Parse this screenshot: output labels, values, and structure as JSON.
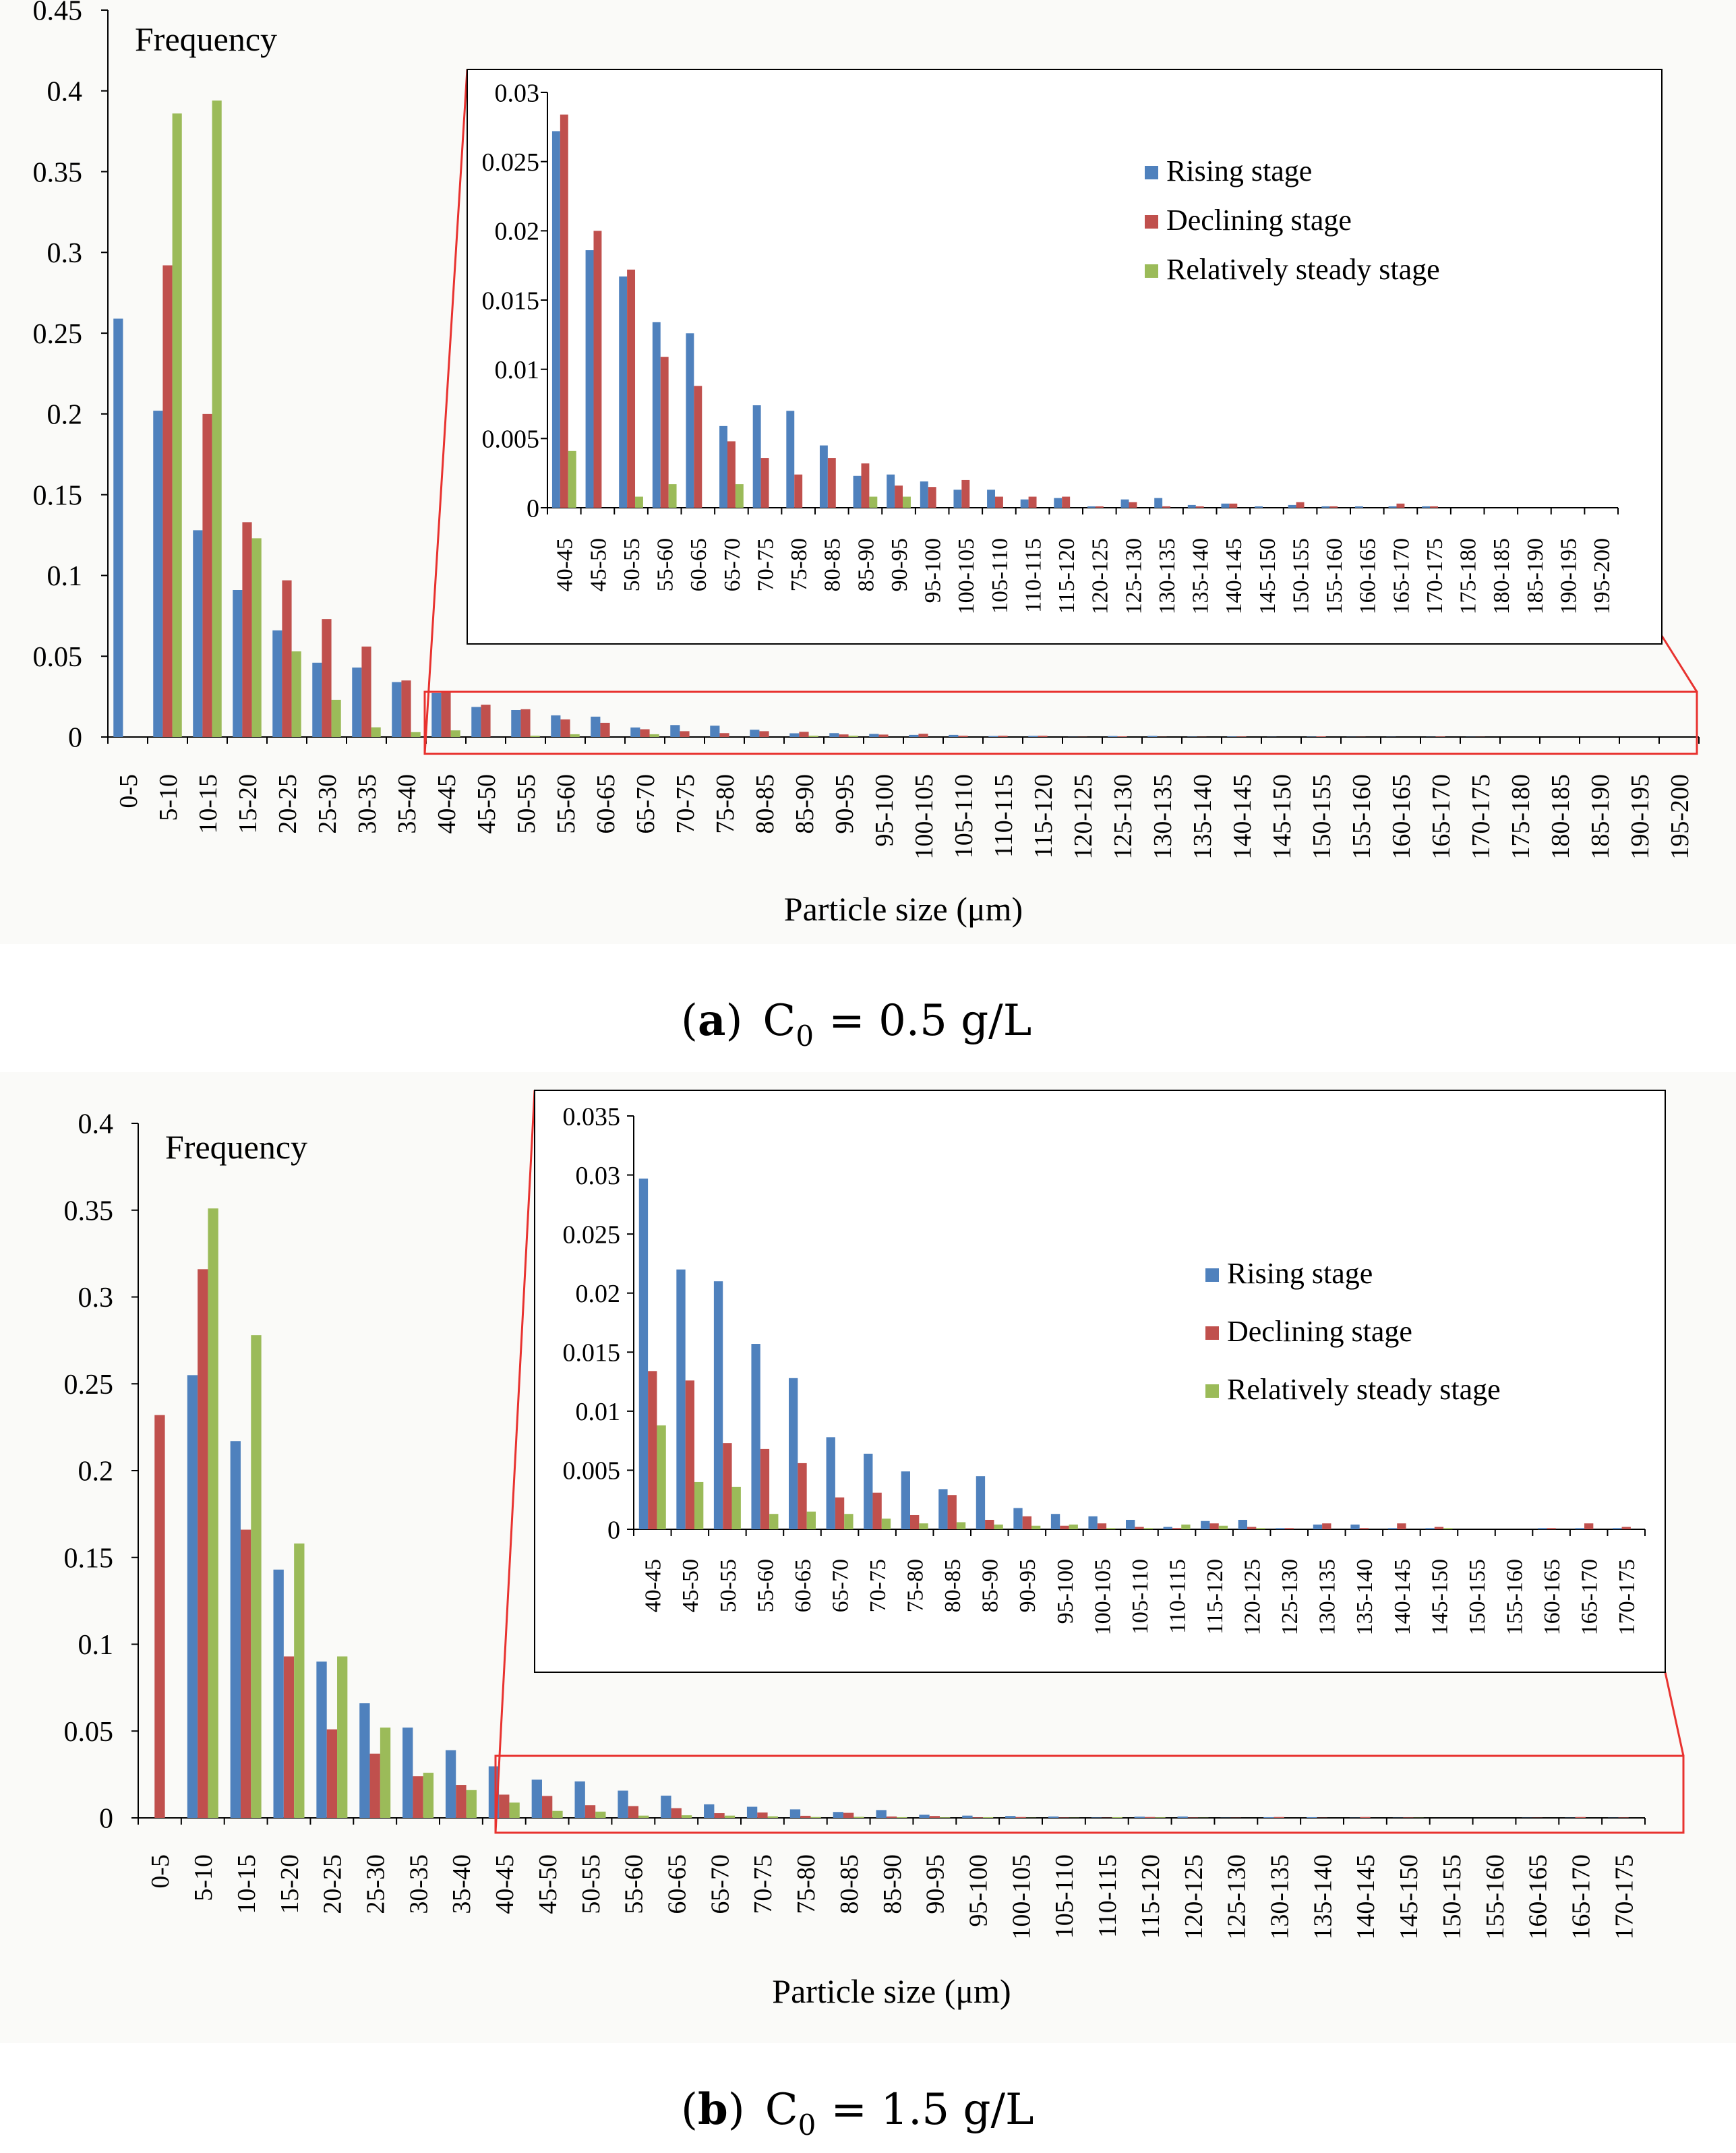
{
  "series_names": [
    "Rising stage",
    "Declining stage",
    "Relatively steady stage"
  ],
  "colors": {
    "rising": "#4f81bd",
    "declining": "#c0504d",
    "steady": "#9bbb59",
    "zoom_box": "#e8322f"
  },
  "chart_data": [
    {
      "type": "bar",
      "id": "a-main",
      "ylabel": "Frequency",
      "xlabel": "Particle size (μm)",
      "ylim": [
        0,
        0.45
      ],
      "yticks": [
        "0",
        "0.05",
        "0.1",
        "0.15",
        "0.2",
        "0.25",
        "0.3",
        "0.35",
        "0.4",
        "0.45"
      ],
      "categories": [
        "0-5",
        "5-10",
        "10-15",
        "15-20",
        "20-25",
        "25-30",
        "30-35",
        "35-40",
        "40-45",
        "45-50",
        "50-55",
        "55-60",
        "60-65",
        "65-70",
        "70-75",
        "75-80",
        "80-85",
        "85-90",
        "90-95",
        "95-100",
        "100-105",
        "105-110",
        "110-115",
        "115-120",
        "120-125",
        "125-130",
        "130-135",
        "135-140",
        "140-145",
        "145-150",
        "150-155",
        "155-160",
        "160-165",
        "165-170",
        "170-175",
        "175-180",
        "180-185",
        "185-190",
        "190-195",
        "195-200"
      ],
      "series": [
        {
          "name": "Rising stage",
          "values": [
            0.259,
            0.202,
            0.128,
            0.091,
            0.066,
            0.046,
            0.043,
            0.034,
            0.0272,
            0.0186,
            0.0167,
            0.0134,
            0.0126,
            0.0059,
            0.0074,
            0.007,
            0.0045,
            0.0023,
            0.0024,
            0.0019,
            0.0013,
            0.0013,
            0.0006,
            0.0007,
            0.0001,
            0.0006,
            0.0007,
            0.0002,
            0.0003,
            0.0001,
            0.0002,
            0.0001,
            0.0001,
            0.0001,
            0.0001,
            0,
            0,
            0,
            0,
            0
          ]
        },
        {
          "name": "Declining stage",
          "values": [
            0,
            0.292,
            0.2,
            0.133,
            0.097,
            0.073,
            0.056,
            0.035,
            0.0284,
            0.02,
            0.0172,
            0.0109,
            0.0088,
            0.0048,
            0.0036,
            0.0024,
            0.0036,
            0.0032,
            0.0016,
            0.0015,
            0.002,
            0.0008,
            0.0008,
            0.0008,
            0.0001,
            0.0004,
            0.0001,
            0.0001,
            0.0003,
            0,
            0.0004,
            0.0001,
            0,
            0.0003,
            0.0001,
            0,
            0,
            0,
            0,
            0
          ]
        },
        {
          "name": "Relatively steady stage",
          "values": [
            0,
            0.386,
            0.394,
            0.123,
            0.053,
            0.023,
            0.006,
            0.003,
            0.0041,
            0,
            0.0008,
            0.0017,
            0,
            0.0017,
            0,
            0,
            0,
            0.0008,
            0.0008,
            0,
            0,
            0,
            0,
            0,
            0,
            0,
            0,
            0,
            0,
            0,
            0,
            0,
            0,
            0,
            0,
            0,
            0,
            0,
            0,
            0
          ]
        }
      ]
    },
    {
      "type": "bar",
      "id": "a-inset",
      "ylim": [
        0,
        0.03
      ],
      "yticks": [
        "0",
        "0.005",
        "0.01",
        "0.015",
        "0.02",
        "0.025",
        "0.03"
      ],
      "categories": [
        "40-45",
        "45-50",
        "50-55",
        "55-60",
        "60-65",
        "65-70",
        "70-75",
        "75-80",
        "80-85",
        "85-90",
        "90-95",
        "95-100",
        "100-105",
        "105-110",
        "110-115",
        "115-120",
        "120-125",
        "125-130",
        "130-135",
        "135-140",
        "140-145",
        "145-150",
        "150-155",
        "155-160",
        "160-165",
        "165-170",
        "170-175",
        "175-180",
        "180-185",
        "185-190",
        "190-195",
        "195-200"
      ],
      "series": [
        {
          "name": "Rising stage",
          "values": [
            0.0272,
            0.0186,
            0.0167,
            0.0134,
            0.0126,
            0.0059,
            0.0074,
            0.007,
            0.0045,
            0.0023,
            0.0024,
            0.0019,
            0.0013,
            0.0013,
            0.0006,
            0.0007,
            0.0001,
            0.0006,
            0.0007,
            0.0002,
            0.0003,
            0.0001,
            0.0002,
            0.0001,
            0.0001,
            0.0001,
            0.0001,
            0,
            0,
            0,
            0,
            0
          ]
        },
        {
          "name": "Declining stage",
          "values": [
            0.0284,
            0.02,
            0.0172,
            0.0109,
            0.0088,
            0.0048,
            0.0036,
            0.0024,
            0.0036,
            0.0032,
            0.0016,
            0.0015,
            0.002,
            0.0008,
            0.0008,
            0.0008,
            0.0001,
            0.0004,
            0.0001,
            0.0001,
            0.0003,
            0,
            0.0004,
            0.0001,
            0,
            0.0003,
            0.0001,
            0,
            0,
            0,
            0,
            0
          ]
        },
        {
          "name": "Relatively steady stage",
          "values": [
            0.0041,
            0,
            0.0008,
            0.0017,
            0,
            0.0017,
            0,
            0,
            0,
            0.0008,
            0.0008,
            0,
            0,
            0,
            0,
            0,
            0,
            0,
            0,
            0,
            0,
            0,
            0,
            0,
            0,
            0,
            0,
            0,
            0,
            0,
            0,
            0
          ]
        }
      ]
    },
    {
      "type": "bar",
      "id": "b-main",
      "ylabel": "Frequency",
      "xlabel": "Particle size (μm)",
      "ylim": [
        0,
        0.4
      ],
      "yticks": [
        "0",
        "0.05",
        "0.1",
        "0.15",
        "0.2",
        "0.25",
        "0.3",
        "0.35",
        "0.4"
      ],
      "categories": [
        "0-5",
        "5-10",
        "10-15",
        "15-20",
        "20-25",
        "25-30",
        "30-35",
        "35-40",
        "40-45",
        "45-50",
        "50-55",
        "55-60",
        "60-65",
        "65-70",
        "70-75",
        "75-80",
        "80-85",
        "85-90",
        "90-95",
        "95-100",
        "100-105",
        "105-110",
        "110-115",
        "115-120",
        "120-125",
        "125-130",
        "130-135",
        "135-140",
        "140-145",
        "145-150",
        "150-155",
        "155-160",
        "160-165",
        "165-170",
        "170-175"
      ],
      "series": [
        {
          "name": "Rising stage",
          "values": [
            0,
            0.255,
            0.217,
            0.143,
            0.09,
            0.066,
            0.052,
            0.039,
            0.0297,
            0.022,
            0.021,
            0.0157,
            0.0128,
            0.0078,
            0.0064,
            0.0049,
            0.0034,
            0.0045,
            0.0018,
            0.0013,
            0.0011,
            0.0008,
            0.0002,
            0.0007,
            0.0008,
            0.0001,
            0.0004,
            0.0004,
            0.0001,
            0.0001,
            0,
            0,
            0.0001,
            0.0001,
            0.0001
          ]
        },
        {
          "name": "Declining stage",
          "values": [
            0.232,
            0.316,
            0.166,
            0.093,
            0.051,
            0.037,
            0.024,
            0.019,
            0.0134,
            0.0126,
            0.0073,
            0.0068,
            0.0056,
            0.0027,
            0.0031,
            0.0012,
            0.0029,
            0.0008,
            0.0011,
            0.0003,
            0.0005,
            0.0002,
            0.0001,
            0.0005,
            0.0002,
            0.0001,
            0.0005,
            0.0001,
            0.0005,
            0.0002,
            0,
            0,
            0.0001,
            0.0005,
            0.0002
          ]
        },
        {
          "name": "Relatively steady stage",
          "values": [
            0,
            0.351,
            0.278,
            0.158,
            0.093,
            0.052,
            0.026,
            0.016,
            0.0088,
            0.004,
            0.0036,
            0.0013,
            0.0015,
            0.0013,
            0.0009,
            0.0005,
            0.0006,
            0.0004,
            0.0003,
            0.0004,
            0.0001,
            0.0001,
            0.0004,
            0.0003,
            0.0001,
            0,
            0,
            0,
            0,
            0.0001,
            0,
            0,
            0,
            0,
            0
          ]
        }
      ]
    },
    {
      "type": "bar",
      "id": "b-inset",
      "ylim": [
        0,
        0.035
      ],
      "yticks": [
        "0",
        "0.005",
        "0.01",
        "0.015",
        "0.02",
        "0.025",
        "0.03",
        "0.035"
      ],
      "categories": [
        "40-45",
        "45-50",
        "50-55",
        "55-60",
        "60-65",
        "65-70",
        "70-75",
        "75-80",
        "80-85",
        "85-90",
        "90-95",
        "95-100",
        "100-105",
        "105-110",
        "110-115",
        "115-120",
        "120-125",
        "125-130",
        "130-135",
        "135-140",
        "140-145",
        "145-150",
        "150-155",
        "155-160",
        "160-165",
        "165-170",
        "170-175"
      ],
      "series": [
        {
          "name": "Rising stage",
          "values": [
            0.0297,
            0.022,
            0.021,
            0.0157,
            0.0128,
            0.0078,
            0.0064,
            0.0049,
            0.0034,
            0.0045,
            0.0018,
            0.0013,
            0.0011,
            0.0008,
            0.0002,
            0.0007,
            0.0008,
            0.0001,
            0.0004,
            0.0004,
            0.0001,
            0.0001,
            0,
            0,
            0.0001,
            0.0001,
            0.0001
          ]
        },
        {
          "name": "Declining stage",
          "values": [
            0.0134,
            0.0126,
            0.0073,
            0.0068,
            0.0056,
            0.0027,
            0.0031,
            0.0012,
            0.0029,
            0.0008,
            0.0011,
            0.0003,
            0.0005,
            0.0002,
            0.0001,
            0.0005,
            0.0002,
            0.0001,
            0.0005,
            0.0001,
            0.0005,
            0.0002,
            0,
            0,
            0.0001,
            0.0005,
            0.0002
          ]
        },
        {
          "name": "Relatively steady stage",
          "values": [
            0.0088,
            0.004,
            0.0036,
            0.0013,
            0.0015,
            0.0013,
            0.0009,
            0.0005,
            0.0006,
            0.0004,
            0.0003,
            0.0004,
            0.0001,
            0.0001,
            0.0004,
            0.0003,
            0.0001,
            0,
            0,
            0,
            0,
            0.0001,
            0,
            0,
            0,
            0,
            0
          ]
        }
      ]
    }
  ],
  "captions": {
    "a": {
      "letter": "a",
      "c_symbol": "C",
      "c_sub": "0",
      "relation": "= 0.5 g/L"
    },
    "b": {
      "letter": "b",
      "c_symbol": "C",
      "c_sub": "0",
      "relation": "= 1.5 g/L"
    }
  }
}
